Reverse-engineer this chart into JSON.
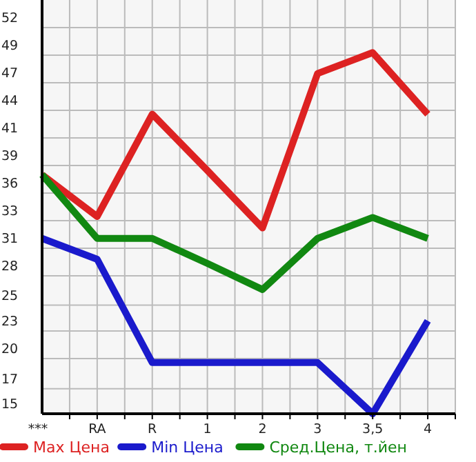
{
  "chart_data": {
    "type": "line",
    "categories": [
      "***",
      "RA",
      "R",
      "1",
      "2",
      "3",
      "3,5",
      "4"
    ],
    "series": [
      {
        "name": "Max Цена",
        "color": "#dd2222",
        "values": [
          37.9,
          33.9,
          43.7,
          38.3,
          32.8,
          47.6,
          49.6,
          43.7
        ]
      },
      {
        "name": "Min Цена",
        "color": "#1a1acc",
        "values": [
          31.8,
          29.8,
          19.9,
          19.9,
          19.9,
          19.9,
          15,
          23.9
        ]
      },
      {
        "name": "Сред.Цена, т.йен",
        "color": "#118811",
        "values": [
          37.9,
          31.8,
          31.8,
          29.4,
          26.9,
          31.8,
          33.8,
          31.8
        ]
      }
    ],
    "ylim": [
      15,
      54.64
    ],
    "yticks": [
      15,
      {
        "value": 17.4,
        "label": "17"
      },
      {
        "value": 20.29,
        "label": "20"
      },
      {
        "value": 22.93,
        "label": "23"
      },
      {
        "value": 25.4,
        "label": "25"
      },
      {
        "value": 28.21,
        "label": "28"
      },
      {
        "value": 30.86,
        "label": "31"
      },
      {
        "value": 33.5,
        "label": "33"
      },
      {
        "value": 36.14,
        "label": "36"
      },
      {
        "value": 38.79,
        "label": "39"
      },
      {
        "value": 41.43,
        "label": "41"
      },
      {
        "value": 44.07,
        "label": "44"
      },
      {
        "value": 46.71,
        "label": "47"
      },
      {
        "value": 49.36,
        "label": "49"
      },
      52
    ],
    "grid": true,
    "legend": "bottom",
    "marker": "none",
    "line_style": "solid"
  }
}
